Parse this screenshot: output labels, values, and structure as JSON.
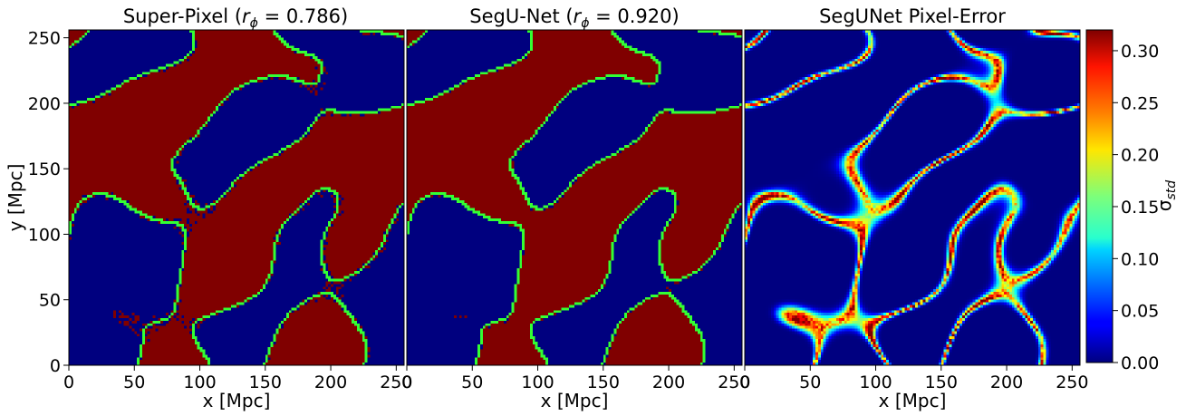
{
  "chart_data": [
    {
      "type": "heatmap",
      "title": "Super-Pixel ($r_\\phi = 0.786$)",
      "title_display": "Super-Pixel (rϕ = 0.786)",
      "title_parts": {
        "pre": "Super-Pixel (",
        "sym": "r",
        "sub": "ϕ",
        "post": " = 0.786)"
      },
      "xlabel": "x [Mpc]",
      "ylabel": "y [Mpc]",
      "xlim": [
        0,
        256
      ],
      "ylim": [
        0,
        256
      ],
      "xticks": [
        0,
        50,
        100,
        150,
        200,
        250
      ],
      "yticks": [
        0,
        50,
        100,
        150,
        200,
        250
      ],
      "xtick_labels": [
        "0",
        "50",
        "100",
        "150",
        "200",
        "250"
      ],
      "ytick_labels": [
        "0",
        "50",
        "100",
        "150",
        "200",
        "250"
      ],
      "colors": {
        "ionized": "#800000",
        "neutral": "#00007f",
        "contour": "#33ff33"
      },
      "map_kind": "binary",
      "noise": 0.12
    },
    {
      "type": "heatmap",
      "title": "SegU-Net ($r_\\phi = 0.920$)",
      "title_display": "SegU-Net (rϕ = 0.920)",
      "title_parts": {
        "pre": "SegU-Net (",
        "sym": "r",
        "sub": "ϕ",
        "post": " = 0.920)"
      },
      "xlabel": "x [Mpc]",
      "xlim": [
        0,
        256
      ],
      "ylim": [
        0,
        256
      ],
      "xticks": [
        0,
        50,
        100,
        150,
        200,
        250
      ],
      "xtick_labels": [
        "0",
        "50",
        "100",
        "150",
        "200",
        "250"
      ],
      "colors": {
        "ionized": "#800000",
        "neutral": "#00007f",
        "contour": "#33ff33"
      },
      "map_kind": "binary",
      "noise": 0.04
    },
    {
      "type": "heatmap",
      "title": "SegUNet Pixel-Error",
      "xlabel": "x [Mpc]",
      "xlim": [
        0,
        256
      ],
      "ylim": [
        0,
        256
      ],
      "xticks": [
        0,
        50,
        100,
        150,
        200,
        250
      ],
      "xtick_labels": [
        "0",
        "50",
        "100",
        "150",
        "200",
        "250"
      ],
      "colormap": "jet",
      "map_kind": "error",
      "colorbar": {
        "label": "σstd",
        "label_parts": {
          "sym": "σ",
          "sub": "std"
        },
        "vmin": 0.0,
        "vmax": 0.32,
        "ticks": [
          0.0,
          0.05,
          0.1,
          0.15,
          0.2,
          0.25,
          0.3
        ],
        "tick_labels": [
          "0.00",
          "0.05",
          "0.10",
          "0.15",
          "0.20",
          "0.25",
          "0.30"
        ]
      }
    }
  ]
}
